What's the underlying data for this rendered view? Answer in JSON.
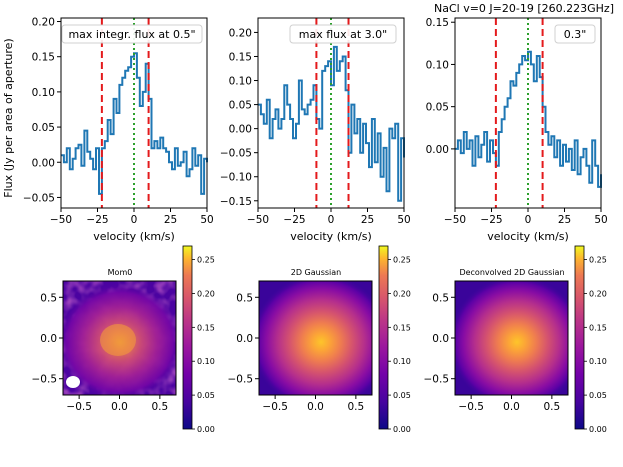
{
  "figure_title": "NaCl v=0 J=20-19 [260.223GHz]",
  "colors": {
    "spectrum": "#1f77b4",
    "aperture_line": "#e41a1c",
    "center_line": "#2ca02c",
    "frame": "#000000"
  },
  "chart_data": [
    {
      "type": "line",
      "panel": "spectrum-1",
      "legend": "max integr. flux at 0.5\"",
      "xlabel": "velocity (km/s)",
      "ylabel": "Flux (Jy per area of aperture)",
      "xlim": [
        -50,
        50
      ],
      "ylim": [
        -0.065,
        0.205
      ],
      "xticks": [
        -50,
        -25,
        0,
        25,
        50
      ],
      "yticks": [
        -0.05,
        0.0,
        0.05,
        0.1,
        0.15,
        0.2
      ],
      "ytick_labels": [
        "−0.05",
        "0.00",
        "0.05",
        "0.10",
        "0.15",
        "0.20"
      ],
      "xtick_labels": [
        "−50",
        "−25",
        "0",
        "25",
        "50"
      ],
      "vlines_red": [
        -22,
        10
      ],
      "vline_green": 0,
      "x": [
        -50,
        -48,
        -46,
        -44,
        -42,
        -40,
        -38,
        -36,
        -34,
        -32,
        -30,
        -28,
        -26,
        -24,
        -22,
        -20,
        -18,
        -16,
        -14,
        -12,
        -10,
        -8,
        -6,
        -4,
        -2,
        0,
        2,
        4,
        6,
        8,
        10,
        12,
        14,
        16,
        18,
        20,
        22,
        24,
        26,
        28,
        30,
        32,
        34,
        36,
        38,
        40,
        42,
        44,
        46,
        48,
        50
      ],
      "y": [
        0.01,
        0.0,
        0.02,
        -0.01,
        0.005,
        0.02,
        0.025,
        -0.005,
        0.045,
        0.015,
        0.005,
        -0.01,
        0.02,
        -0.045,
        0.02,
        0.03,
        0.06,
        0.04,
        0.09,
        0.07,
        0.11,
        0.12,
        0.13,
        0.135,
        0.15,
        0.155,
        0.12,
        0.08,
        0.1,
        0.14,
        0.09,
        0.02,
        0.03,
        0.02,
        0.035,
        0.02,
        0.015,
        0.0,
        -0.01,
        0.02,
        -0.005,
        0.0,
        0.015,
        -0.02,
        -0.01,
        0.02,
        -0.005,
        0.01,
        -0.045,
        0.005,
        0.0
      ]
    },
    {
      "type": "line",
      "panel": "spectrum-2",
      "legend": "max flux at 3.0\"",
      "xlabel": "velocity (km/s)",
      "xlim": [
        -50,
        50
      ],
      "ylim": [
        -0.165,
        0.23
      ],
      "xticks": [
        -50,
        -25,
        0,
        25,
        50
      ],
      "yticks": [
        -0.15,
        -0.1,
        -0.05,
        0.0,
        0.05,
        0.1,
        0.15,
        0.2
      ],
      "ytick_labels": [
        "−0.15",
        "−0.10",
        "−0.05",
        "0.00",
        "0.05",
        "0.10",
        "0.15",
        "0.20"
      ],
      "xtick_labels": [
        "−50",
        "−25",
        "0",
        "25",
        "50"
      ],
      "vlines_red": [
        -10,
        12
      ],
      "vline_green": 0,
      "x": [
        -50,
        -48,
        -46,
        -44,
        -42,
        -40,
        -38,
        -36,
        -34,
        -32,
        -30,
        -28,
        -26,
        -24,
        -22,
        -20,
        -18,
        -16,
        -14,
        -12,
        -10,
        -8,
        -6,
        -4,
        -2,
        0,
        2,
        4,
        6,
        8,
        10,
        12,
        14,
        16,
        18,
        20,
        22,
        24,
        26,
        28,
        30,
        32,
        34,
        36,
        38,
        40,
        42,
        44,
        46,
        48,
        50
      ],
      "y": [
        0.05,
        0.03,
        0.01,
        0.06,
        -0.02,
        0.02,
        0.04,
        0.0,
        0.02,
        0.09,
        0.05,
        0.02,
        -0.02,
        0.01,
        0.1,
        0.04,
        0.03,
        0.05,
        0.06,
        0.09,
        0.02,
        0.0,
        0.12,
        0.13,
        0.14,
        0.09,
        0.17,
        0.12,
        0.14,
        0.15,
        0.08,
        -0.05,
        0.05,
        -0.01,
        0.02,
        -0.05,
        0.01,
        -0.03,
        -0.08,
        0.02,
        -0.07,
        -0.01,
        -0.1,
        -0.04,
        -0.13,
        0.0,
        -0.02,
        0.01,
        -0.15,
        -0.02,
        -0.06
      ]
    },
    {
      "type": "line",
      "panel": "spectrum-3",
      "legend": "0.3\"",
      "xlabel": "velocity (km/s)",
      "xlim": [
        -50,
        50
      ],
      "ylim": [
        -0.07,
        0.155
      ],
      "xticks": [
        -50,
        -25,
        0,
        25,
        50
      ],
      "yticks": [
        0.0,
        0.05,
        0.1,
        0.15
      ],
      "ytick_labels": [
        "0.00",
        "0.05",
        "0.10",
        "0.15"
      ],
      "xtick_labels": [
        "−50",
        "−25",
        "0",
        "25",
        "50"
      ],
      "vlines_red": [
        -22,
        10
      ],
      "vline_green": 0,
      "x": [
        -50,
        -48,
        -46,
        -44,
        -42,
        -40,
        -38,
        -36,
        -34,
        -32,
        -30,
        -28,
        -26,
        -24,
        -22,
        -20,
        -18,
        -16,
        -14,
        -12,
        -10,
        -8,
        -6,
        -4,
        -2,
        0,
        2,
        4,
        6,
        8,
        10,
        12,
        14,
        16,
        18,
        20,
        22,
        24,
        26,
        28,
        30,
        32,
        34,
        36,
        38,
        40,
        42,
        44,
        46,
        48,
        50
      ],
      "y": [
        0.0,
        0.01,
        -0.005,
        0.02,
        0.0,
        0.01,
        -0.02,
        0.015,
        -0.01,
        0.005,
        0.02,
        -0.015,
        0.01,
        -0.005,
        -0.02,
        0.02,
        0.035,
        0.05,
        0.06,
        0.08,
        0.075,
        0.09,
        0.1,
        0.11,
        0.105,
        0.115,
        0.1,
        0.08,
        0.11,
        0.085,
        0.05,
        0.02,
        0.005,
        0.015,
        -0.01,
        0.01,
        -0.02,
        0.005,
        -0.015,
        0.0,
        -0.025,
        0.01,
        -0.03,
        -0.01,
        0.0,
        -0.02,
        -0.04,
        0.01,
        -0.02,
        -0.045,
        -0.03
      ]
    },
    {
      "type": "heatmap",
      "panel": "map-1",
      "title": "Mom0",
      "xlim": [
        -0.7,
        0.7
      ],
      "ylim": [
        -0.7,
        0.7
      ],
      "xticks": [
        -0.5,
        0.0,
        0.5
      ],
      "yticks": [
        -0.5,
        0.0,
        0.5
      ],
      "xtick_labels": [
        "−0.5",
        "0.0",
        "0.5"
      ],
      "ytick_labels": [
        "−0.5",
        "0.0",
        "0.5"
      ],
      "peak_position": [
        0.0,
        -0.05
      ],
      "colorbar_range": [
        0.0,
        0.27
      ],
      "colorbar_ticks": [
        0.0,
        0.05,
        0.1,
        0.15,
        0.2,
        0.25
      ],
      "colorbar_labels": [
        "0.00",
        "0.05",
        "0.10",
        "0.15",
        "0.20",
        "0.25"
      ]
    },
    {
      "type": "heatmap",
      "panel": "map-2",
      "title": "2D Gaussian",
      "xlim": [
        -0.7,
        0.7
      ],
      "ylim": [
        -0.7,
        0.7
      ],
      "xticks": [
        -0.5,
        0.0,
        0.5
      ],
      "yticks": [
        -0.5,
        0.0,
        0.5
      ],
      "xtick_labels": [
        "−0.5",
        "0.0",
        "0.5"
      ],
      "ytick_labels": [
        "−0.5",
        "0.0",
        "0.5"
      ],
      "peak_position": [
        0.05,
        -0.05
      ],
      "colorbar_range": [
        0.0,
        0.27
      ],
      "colorbar_ticks": [
        0.0,
        0.05,
        0.1,
        0.15,
        0.2,
        0.25
      ],
      "colorbar_labels": [
        "0.00",
        "0.05",
        "0.10",
        "0.15",
        "0.20",
        "0.25"
      ]
    },
    {
      "type": "heatmap",
      "panel": "map-3",
      "title": "Deconvolved 2D Gaussian",
      "xlim": [
        -0.7,
        0.7
      ],
      "ylim": [
        -0.7,
        0.7
      ],
      "xticks": [
        -0.5,
        0.0,
        0.5
      ],
      "yticks": [
        -0.5,
        0.0,
        0.5
      ],
      "xtick_labels": [
        "−0.5",
        "0.0",
        "0.5"
      ],
      "ytick_labels": [
        "−0.5",
        "0.0",
        "0.5"
      ],
      "peak_position": [
        0.05,
        -0.05
      ],
      "colorbar_range": [
        0.0,
        0.27
      ],
      "colorbar_ticks": [
        0.0,
        0.05,
        0.1,
        0.15,
        0.2,
        0.25
      ],
      "colorbar_labels": [
        "0.00",
        "0.05",
        "0.10",
        "0.15",
        "0.20",
        "0.25"
      ]
    }
  ]
}
